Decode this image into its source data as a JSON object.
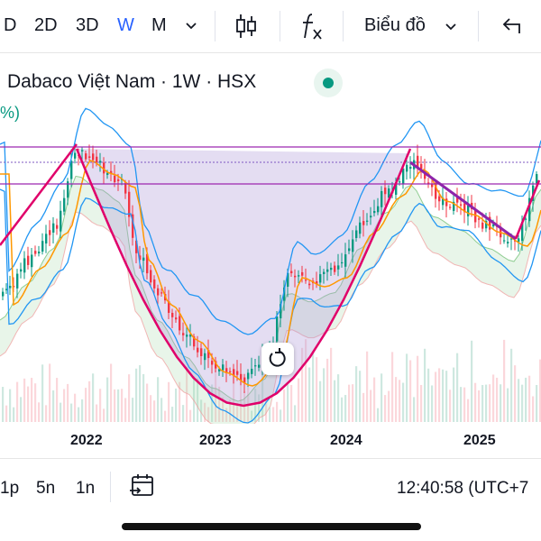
{
  "toolbar": {
    "intervals": [
      "D",
      "2D",
      "3D",
      "W",
      "M"
    ],
    "active_interval": "W",
    "chart_type_label": "Biểu đồ"
  },
  "legend": {
    "symbol_text": "Dabaco Việt Nam · 1W · HSX",
    "pct_fragment": "%)"
  },
  "bottom": {
    "ranges": [
      "1p",
      "5n",
      "1n"
    ],
    "clock": "12:40:58 (UTC+7"
  },
  "colors": {
    "up": "#089981",
    "down": "#f23645",
    "active": "#2962ff",
    "cup_pattern": "#e0006a",
    "horizontal_levels": "#9c27b0",
    "bollinger_band": "#2196f3",
    "moving_average": "#ff9800"
  },
  "chart_data": {
    "type": "candlestick",
    "x_tick_labels": [
      "2022",
      "2023",
      "2024",
      "2025"
    ],
    "overlays": [
      "bollinger-bands",
      "moving-average",
      "ichimoku-cloud",
      "volume",
      "cup-pattern",
      "horizontal-lines"
    ]
  }
}
